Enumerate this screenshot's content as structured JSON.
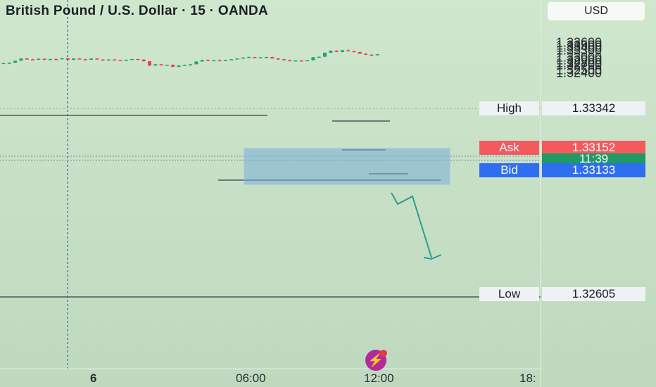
{
  "header": {
    "title": "British Pound / U.S. Dollar · 15 · OANDA",
    "currency_button": "USD"
  },
  "axis": {
    "price_labels": [
      "1.33600",
      "1.33500",
      "1.33400",
      "1.33300",
      "1.33000",
      "1.32900",
      "1.32800",
      "1.32700",
      "1.32500",
      "1.32400"
    ],
    "time_labels": [
      "6",
      "06:00",
      "12:00",
      "18:"
    ]
  },
  "tags": {
    "high_label": "High",
    "high_value": "1.33342",
    "ask_label": "Ask",
    "ask_value": "1.33152",
    "countdown": "11:39",
    "bid_label": "Bid",
    "bid_value": "1.33133",
    "low_label": "Low",
    "low_value": "1.32605"
  },
  "colors": {
    "up": "#21a37a",
    "down": "#e8434b",
    "ask": "#f25a5e",
    "bid": "#2f6ef0",
    "countdown": "#1f9a63",
    "zone": "#7aaed8",
    "arrow": "#2a9d8f",
    "logo": "#b32a9c"
  },
  "chart_data": {
    "type": "candlestick",
    "symbol": "GBPUSD",
    "timeframe": "15",
    "price_range": [
      1.3233,
      1.3368
    ],
    "high": 1.33342,
    "low": 1.32605,
    "ask": 1.33152,
    "bid": 1.33133,
    "candles": [
      [
        1.3279,
        1.3281,
        1.3278,
        1.328
      ],
      [
        1.328,
        1.3283,
        1.3279,
        1.3281
      ],
      [
        1.3281,
        1.329,
        1.328,
        1.3289
      ],
      [
        1.3289,
        1.3299,
        1.3288,
        1.3298
      ],
      [
        1.3298,
        1.33,
        1.3293,
        1.3295
      ],
      [
        1.3295,
        1.3297,
        1.3292,
        1.3294
      ],
      [
        1.3294,
        1.3298,
        1.3292,
        1.3297
      ],
      [
        1.3297,
        1.3299,
        1.3292,
        1.3293
      ],
      [
        1.3293,
        1.3297,
        1.3292,
        1.3296
      ],
      [
        1.3296,
        1.3298,
        1.3294,
        1.3295
      ],
      [
        1.3295,
        1.33,
        1.3293,
        1.3299
      ],
      [
        1.3299,
        1.33,
        1.3291,
        1.3293
      ],
      [
        1.3293,
        1.3299,
        1.3291,
        1.3298
      ],
      [
        1.3298,
        1.33,
        1.3294,
        1.3295
      ],
      [
        1.3295,
        1.3297,
        1.3291,
        1.3293
      ],
      [
        1.3293,
        1.3299,
        1.3292,
        1.3298
      ],
      [
        1.3298,
        1.3299,
        1.3293,
        1.3294
      ],
      [
        1.3294,
        1.3295,
        1.3291,
        1.3292
      ],
      [
        1.3292,
        1.3295,
        1.329,
        1.3294
      ],
      [
        1.3294,
        1.3296,
        1.3291,
        1.3292
      ],
      [
        1.3292,
        1.3293,
        1.329,
        1.3291
      ],
      [
        1.3291,
        1.3294,
        1.329,
        1.3293
      ],
      [
        1.3293,
        1.3297,
        1.3292,
        1.3296
      ],
      [
        1.3296,
        1.3296,
        1.3293,
        1.3294
      ],
      [
        1.3294,
        1.3295,
        1.3286,
        1.3287
      ],
      [
        1.3287,
        1.3288,
        1.3268,
        1.327
      ],
      [
        1.327,
        1.3276,
        1.3268,
        1.3275
      ],
      [
        1.3275,
        1.3276,
        1.3269,
        1.3271
      ],
      [
        1.3271,
        1.3274,
        1.3269,
        1.3273
      ],
      [
        1.3273,
        1.3275,
        1.3263,
        1.3265
      ],
      [
        1.3265,
        1.3272,
        1.3262,
        1.327
      ],
      [
        1.327,
        1.3274,
        1.3268,
        1.3272
      ],
      [
        1.3272,
        1.3276,
        1.327,
        1.3275
      ],
      [
        1.3275,
        1.3287,
        1.3274,
        1.3286
      ],
      [
        1.3286,
        1.3293,
        1.3285,
        1.3292
      ],
      [
        1.3292,
        1.3295,
        1.3287,
        1.3289
      ],
      [
        1.3289,
        1.3293,
        1.3287,
        1.3291
      ],
      [
        1.3291,
        1.3294,
        1.3288,
        1.329
      ],
      [
        1.329,
        1.3293,
        1.3289,
        1.3292
      ],
      [
        1.3292,
        1.3296,
        1.3291,
        1.3295
      ],
      [
        1.3295,
        1.3299,
        1.3294,
        1.3298
      ],
      [
        1.3298,
        1.3303,
        1.3297,
        1.3302
      ],
      [
        1.3302,
        1.3306,
        1.3301,
        1.3304
      ],
      [
        1.3304,
        1.3305,
        1.3301,
        1.3302
      ],
      [
        1.3302,
        1.3304,
        1.33,
        1.3303
      ],
      [
        1.3303,
        1.3305,
        1.3301,
        1.3304
      ],
      [
        1.3304,
        1.3305,
        1.3297,
        1.3298
      ],
      [
        1.3298,
        1.33,
        1.3293,
        1.3295
      ],
      [
        1.3295,
        1.3297,
        1.329,
        1.3291
      ],
      [
        1.3291,
        1.3294,
        1.3287,
        1.3289
      ],
      [
        1.3289,
        1.3292,
        1.3286,
        1.329
      ],
      [
        1.329,
        1.3292,
        1.3288,
        1.3289
      ],
      [
        1.3289,
        1.3292,
        1.3287,
        1.3291
      ],
      [
        1.3291,
        1.3304,
        1.329,
        1.3303
      ],
      [
        1.3303,
        1.3306,
        1.3301,
        1.3305
      ],
      [
        1.3305,
        1.3323,
        1.3303,
        1.3321
      ],
      [
        1.3321,
        1.333,
        1.3319,
        1.3329
      ],
      [
        1.3329,
        1.3332,
        1.3323,
        1.3324
      ],
      [
        1.3324,
        1.3332,
        1.3322,
        1.3331
      ],
      [
        1.3331,
        1.3335,
        1.3326,
        1.3327
      ],
      [
        1.3327,
        1.3329,
        1.3323,
        1.3324
      ],
      [
        1.3324,
        1.3325,
        1.3316,
        1.3317
      ],
      [
        1.3317,
        1.332,
        1.3311,
        1.3313
      ],
      [
        1.3313,
        1.3316,
        1.3311,
        1.3312
      ],
      [
        1.3312,
        1.3316,
        1.3311,
        1.3315
      ]
    ]
  }
}
